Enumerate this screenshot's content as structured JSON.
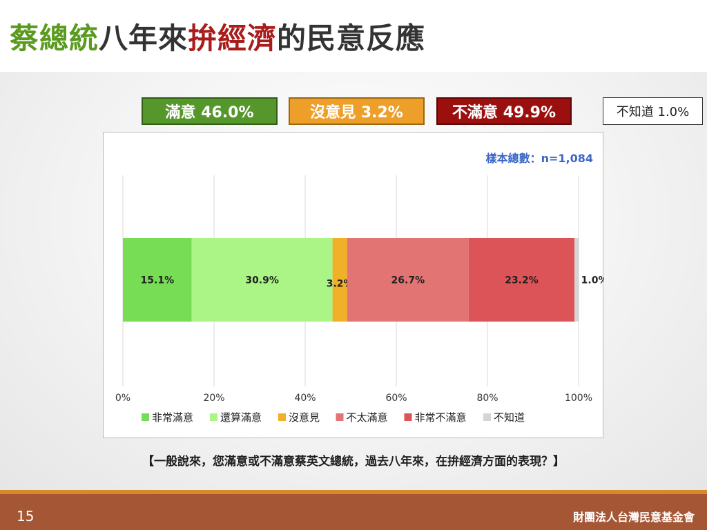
{
  "slide": {
    "title_part1": "蔡總統",
    "title_part2": "八年來",
    "title_part3": "拚經濟",
    "title_part4": "的民意反應",
    "page_number": "15",
    "organization": "財團法人台灣民意基金會",
    "question": "【一般說來，您滿意或不滿意蔡英文總統，過去八年來，在拚經濟方面的表現？】"
  },
  "summary": {
    "satisfied": "滿意 46.0%",
    "neutral": "沒意見 3.2%",
    "dissatisfied": "不滿意 49.9%",
    "dont_know": "不知道 1.0%"
  },
  "colors": {
    "title_green": "#5a9a1f",
    "title_red": "#a81c1c",
    "very_satisfied": "#77dd55",
    "somewhat_satisfied": "#aaf585",
    "no_opinion": "#f0b027",
    "not_very_satisfied": "#e27474",
    "very_dissatisfied": "#dc5458",
    "dont_know": "#d5d5d5",
    "footer": "#a55634"
  },
  "chart_data": {
    "type": "bar",
    "orientation": "horizontal",
    "stacked": true,
    "sample_label": "樣本總數：n=1,084",
    "xlim": [
      0,
      100
    ],
    "x_ticks": [
      "0%",
      "20%",
      "40%",
      "60%",
      "80%",
      "100%"
    ],
    "grid": true,
    "legend_position": "bottom",
    "series": [
      {
        "name": "非常滿意",
        "value": 15.1,
        "label": "15.1%",
        "color": "#77dd55"
      },
      {
        "name": "還算滿意",
        "value": 30.9,
        "label": "30.9%",
        "color": "#aaf585"
      },
      {
        "name": "沒意見",
        "value": 3.2,
        "label": "3.2%",
        "color": "#f0b027"
      },
      {
        "name": "不太滿意",
        "value": 26.7,
        "label": "26.7%",
        "color": "#e27474"
      },
      {
        "name": "非常不滿意",
        "value": 23.2,
        "label": "23.2%",
        "color": "#dc5458"
      },
      {
        "name": "不知道",
        "value": 1.0,
        "label": "1.0%",
        "color": "#d5d5d5"
      }
    ]
  }
}
